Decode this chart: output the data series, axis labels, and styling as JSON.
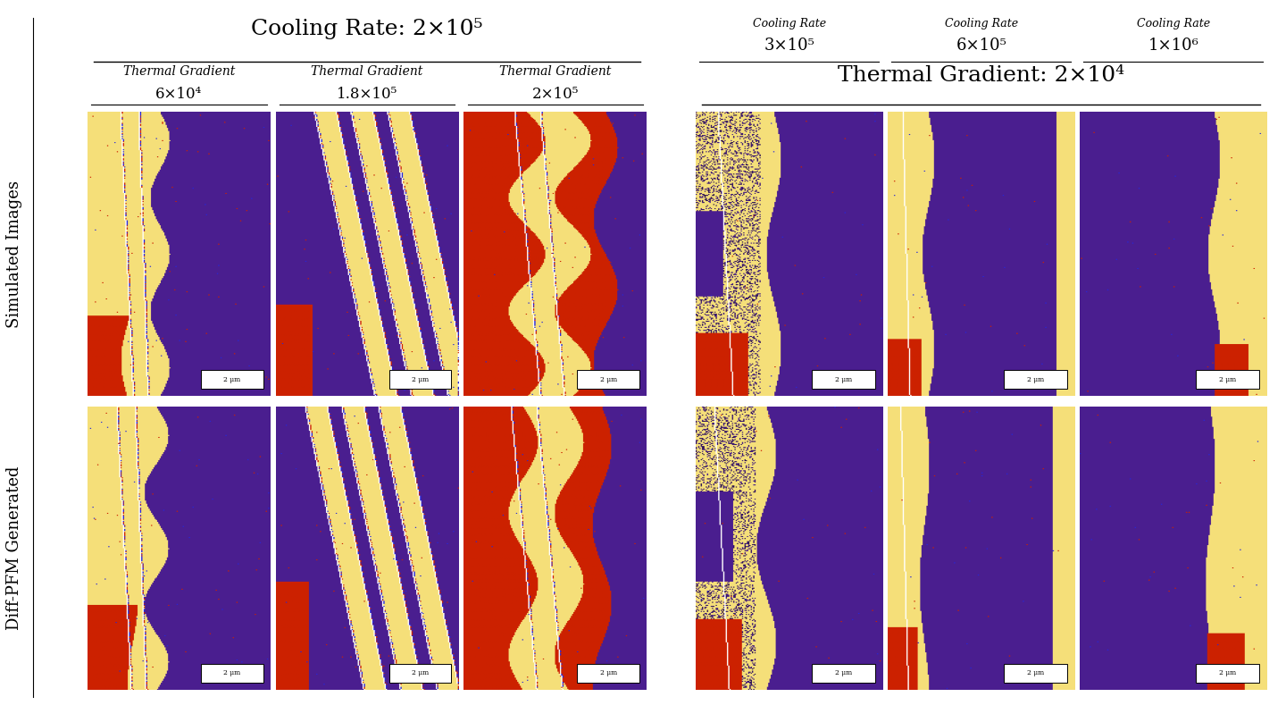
{
  "bg_color": "#ffffff",
  "left_panel_title": "Cooling Rate: 2×10⁵",
  "left_sub_labels": [
    {
      "label": "Thermal Gradient",
      "value": "6×10⁴"
    },
    {
      "label": "Thermal Gradient",
      "value": "1.8×10⁵"
    },
    {
      "label": "Thermal Gradient",
      "value": "2×10⁵"
    }
  ],
  "right_panel_cols": [
    {
      "label": "Cooling Rate",
      "value": "3×10⁵"
    },
    {
      "label": "Cooling Rate",
      "value": "6×10⁵"
    },
    {
      "label": "Cooling Rate",
      "value": "1×10⁶"
    }
  ],
  "right_panel_title": "Thermal Gradient: 2×10⁴",
  "row_labels": [
    "Simulated Images",
    "Diff-PFM Generated"
  ],
  "scale_bar_text": "2 μm",
  "title_fontsize": 18,
  "sub_label_fontsize": 10,
  "row_label_fontsize": 13
}
